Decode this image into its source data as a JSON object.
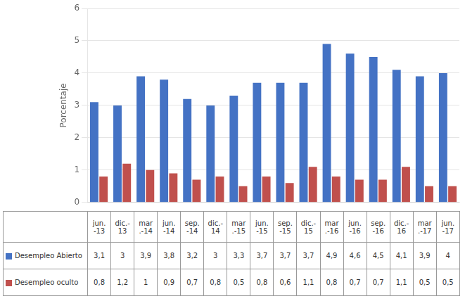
{
  "chart_data": {
    "type": "bar",
    "ylabel": "Porcentaje",
    "categories": [
      "jun.\n-13",
      "dic.-\n13",
      "mar\n.-14",
      "jun.\n-14",
      "sep.\n-14",
      "dic.-\n14",
      "mar\n.-15",
      "jun.\n-15",
      "sep.\n-15",
      "dic.-\n15",
      "mar\n.-16",
      "jun.\n-16",
      "sep.\n-16",
      "dic.-\n16",
      "mar\n.-17",
      "jun.\n-17"
    ],
    "series": [
      {
        "name": "Desempleo Abierto",
        "color": "#4472C4",
        "values": [
          3.1,
          3.0,
          3.9,
          3.8,
          3.2,
          3.0,
          3.3,
          3.7,
          3.7,
          3.7,
          4.9,
          4.6,
          4.5,
          4.1,
          3.9,
          4.0
        ],
        "value_labels": [
          "3,1",
          "3",
          "3,9",
          "3,8",
          "3,2",
          "3",
          "3,3",
          "3,7",
          "3,7",
          "3,7",
          "4,9",
          "4,6",
          "4,5",
          "4,1",
          "3,9",
          "4"
        ]
      },
      {
        "name": "Desempleo oculto",
        "color": "#C0504D",
        "values": [
          0.8,
          1.2,
          1.0,
          0.9,
          0.7,
          0.8,
          0.5,
          0.8,
          0.6,
          1.1,
          0.8,
          0.7,
          0.7,
          1.1,
          0.5,
          0.5
        ],
        "value_labels": [
          "0,8",
          "1,2",
          "1",
          "0,9",
          "0,7",
          "0,8",
          "0,5",
          "0,8",
          "0,6",
          "1,1",
          "0,8",
          "0,7",
          "0,7",
          "1,1",
          "0,5",
          "0,5"
        ]
      }
    ],
    "ylim": [
      0,
      6
    ],
    "yticks": [
      0,
      1,
      2,
      3,
      4,
      5,
      6
    ],
    "grid": true,
    "tick_labels": "y"
  }
}
